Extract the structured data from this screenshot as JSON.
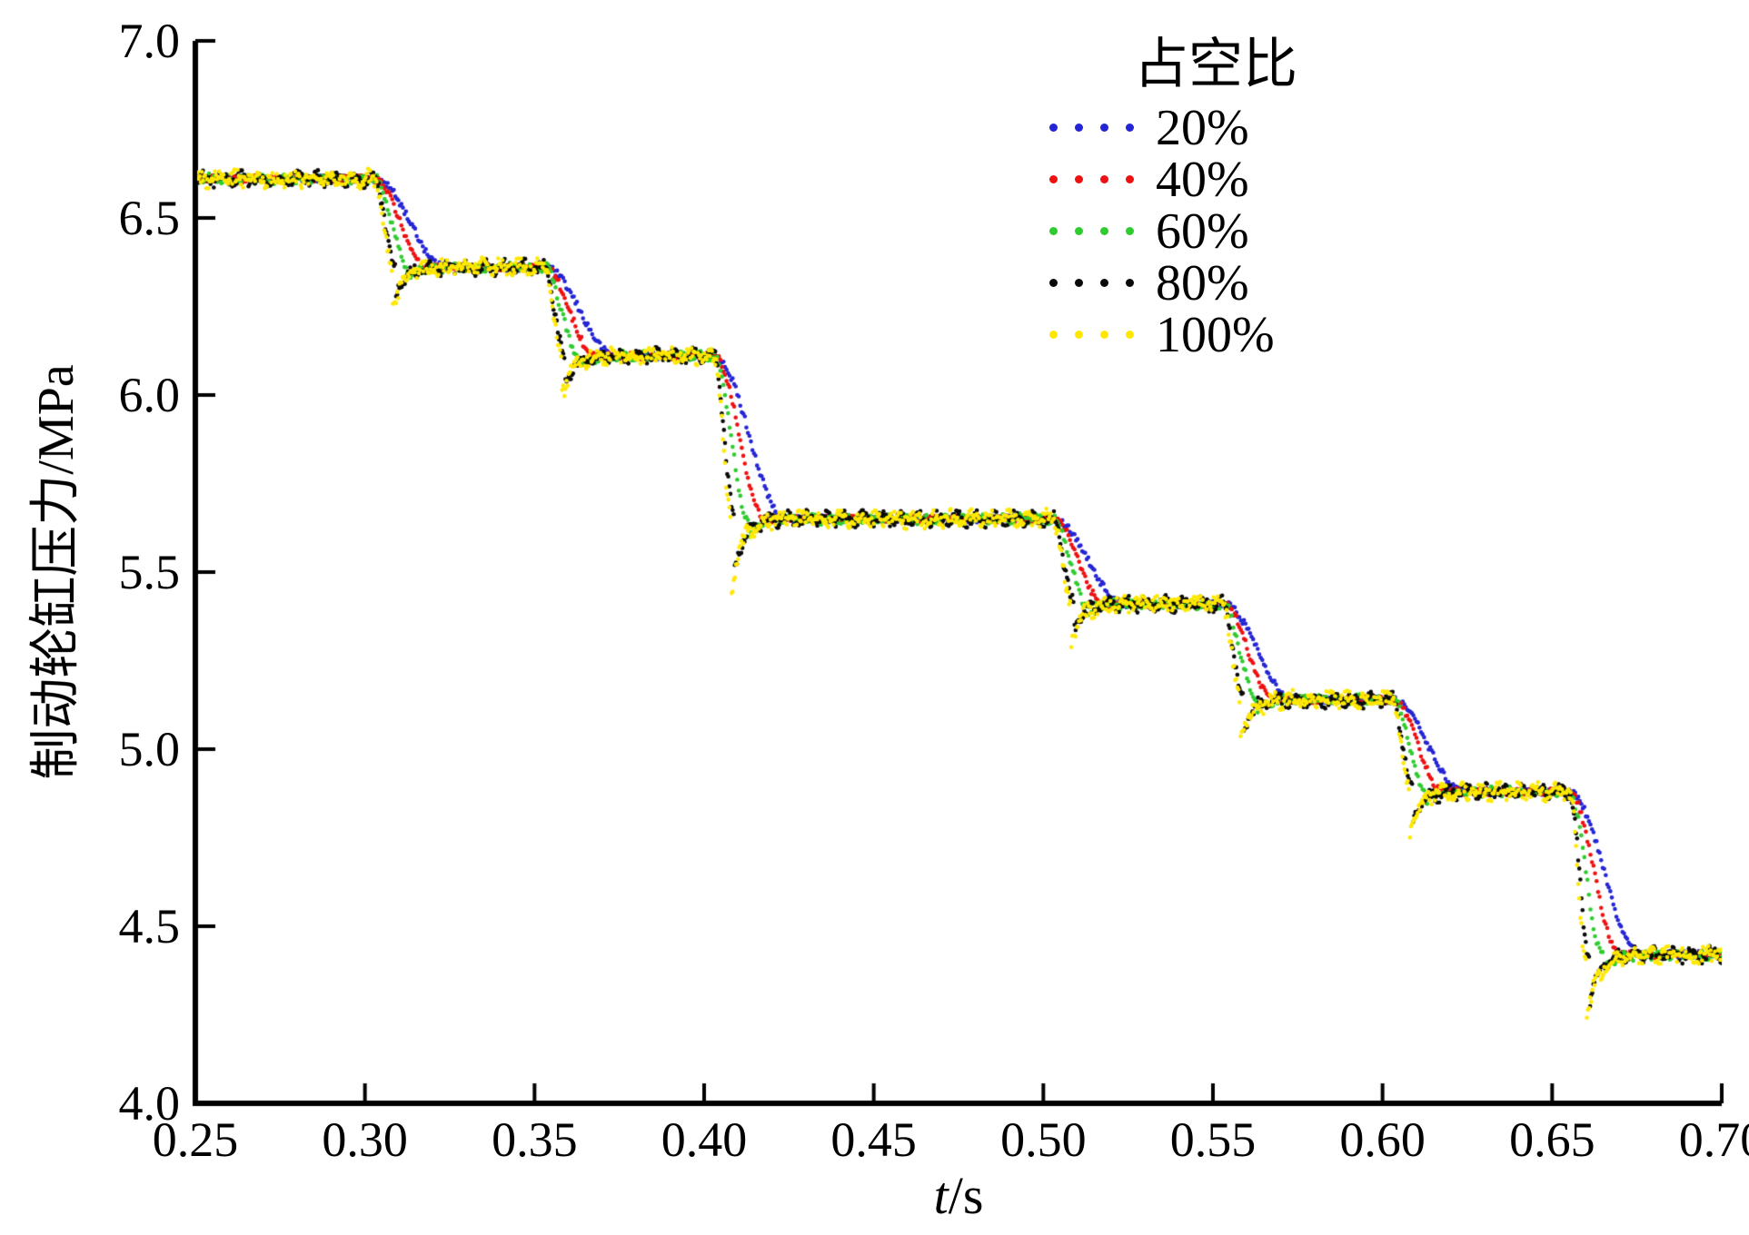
{
  "figure": {
    "background": "#ffffff"
  },
  "chart_data": {
    "type": "scatter",
    "title": "",
    "xlabel": "t/s",
    "xlabel_italic": "t",
    "xlabel_rest": "/s",
    "ylabel": "制动轮缸压力/MPa",
    "xlim": [
      0.25,
      0.7
    ],
    "ylim": [
      4.0,
      7.0
    ],
    "xticks": [
      "0.25",
      "0.30",
      "0.35",
      "0.40",
      "0.45",
      "0.50",
      "0.55",
      "0.60",
      "0.65",
      "0.70"
    ],
    "yticks": [
      "7.0",
      "6.5",
      "6.0",
      "5.5",
      "5.0",
      "4.5",
      "4.0"
    ],
    "grid": false,
    "legend_title": "占空比",
    "legend_position": "top-right",
    "step_levels": [
      6.61,
      6.36,
      6.11,
      5.65,
      5.41,
      5.14,
      4.88,
      4.42
    ],
    "step_times": [
      0.303,
      0.353,
      0.403,
      0.503,
      0.553,
      0.603,
      0.655
    ],
    "series": [
      {
        "name": "20%",
        "color": "#2525d5",
        "fall_duration": 0.021,
        "noise": 0.01,
        "ripple": 0.0,
        "undershoot": 0.0
      },
      {
        "name": "40%",
        "color": "#ee1111",
        "fall_duration": 0.015,
        "noise": 0.01,
        "ripple": 0.0,
        "undershoot": 0.0
      },
      {
        "name": "60%",
        "color": "#2ecc2e",
        "fall_duration": 0.01,
        "noise": 0.01,
        "ripple": 0.006,
        "undershoot": 0.1
      },
      {
        "name": "80%",
        "color": "#0a0a0a",
        "fall_duration": 0.006,
        "noise": 0.014,
        "ripple": 0.012,
        "undershoot": 0.3
      },
      {
        "name": "100%",
        "color": "#ffe800",
        "fall_duration": 0.005,
        "noise": 0.019,
        "ripple": 0.01,
        "undershoot": 0.45
      }
    ]
  }
}
